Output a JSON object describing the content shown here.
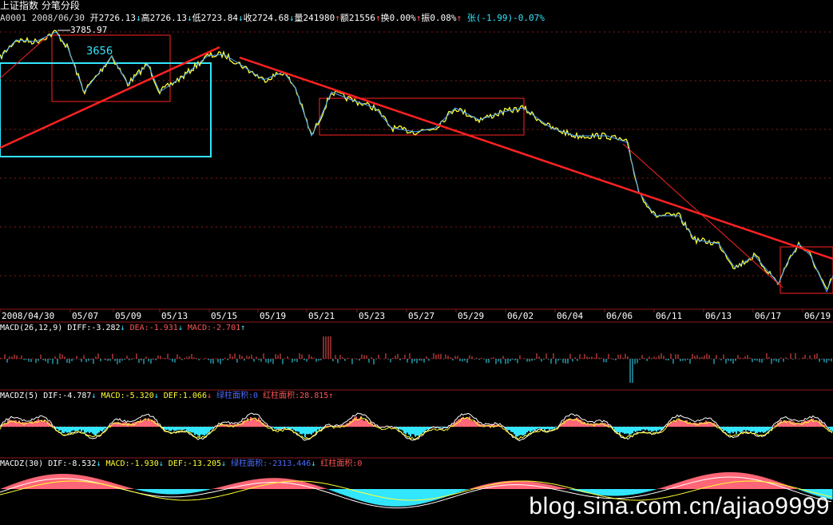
{
  "title": "上证指数  分笔分段",
  "quote": {
    "code": "A0001",
    "date": "2008/06/30",
    "open_label": "开",
    "open": "2726.13",
    "high_label": "高",
    "high": "2726.13",
    "low_label": "低",
    "low": "2723.84",
    "close_label": "收",
    "close": "2724.68",
    "vol_label": "量",
    "vol": "241980",
    "amt_label": "额",
    "amt": "21556",
    "turnover_label": "换",
    "turnover": "0.00%",
    "amp_label": "振",
    "amp": "0.08%",
    "chg_label": "张",
    "chg": "(-1.99)-0.07%"
  },
  "price_annotations": {
    "high_mark": "3785.97",
    "level_mark": "3656"
  },
  "date_axis": [
    "2008/04/30",
    "05/07",
    "05/09",
    "05/13",
    "05/15",
    "05/19",
    "05/21",
    "05/23",
    "05/27",
    "05/29",
    "06/02",
    "06/04",
    "06/06",
    "06/11",
    "06/13",
    "06/17",
    "06/19"
  ],
  "macd_panel": {
    "label": "MACD(26,12,9)",
    "diff": "DIFF:-3.282",
    "dea": "DEA:-1.931",
    "macd": "MACD:-2.701"
  },
  "macdz5_panel": {
    "label": "MACDZ(5)",
    "dif": "DIF:-4.787",
    "macd": "MACD:-5.320",
    "def": "DEF:1.066",
    "green_area": "绿柱面积:0",
    "red_area": "红柱面积:28.815"
  },
  "macdz30_panel": {
    "label": "MACDZ(30)",
    "dif": "DIF:-8.532",
    "macd": "MACD:-1.930",
    "def": "DEF:-13.205",
    "green_area": "绿柱面积:-2313.446",
    "red_area": "红柱面积:0"
  },
  "watermark": "blog.sina.com.cn/ajiao9999",
  "colors": {
    "price": "#ffff33",
    "stroke": "#4aa3ff",
    "trend": "#ff2222",
    "box_red": "#ff2222",
    "box_cyan": "#33e6ff",
    "up": "#ff5555",
    "down": "#33e6ff",
    "white": "#ffffff",
    "grid": "#8b1a1a"
  }
}
